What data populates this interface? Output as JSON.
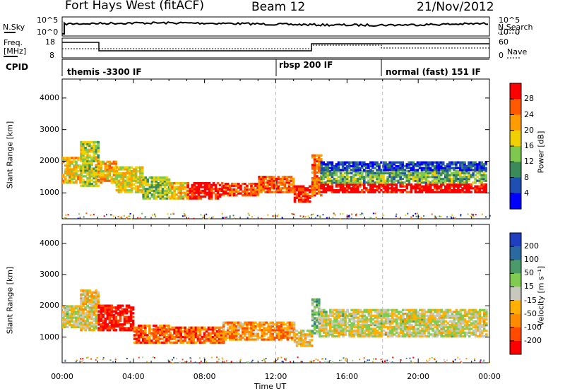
{
  "header": {
    "station": "Fort Hays West (fitACF)",
    "beam": "Beam 12",
    "date": "21/Nov/2012"
  },
  "summary": {
    "nsky_label": "N.Sky",
    "nsearch_label": "N.Search",
    "freq_label_line1": "Freq.",
    "freq_label_line2": "[MHz]",
    "nave_label": "Nave",
    "cpid_label": "CPID",
    "noise_ticks": [
      "10^5",
      "10^0"
    ],
    "freq_ticks": [
      "18",
      "8"
    ],
    "nave_ticks": [
      "60",
      "0"
    ],
    "modes": [
      {
        "label": "themis -3300 IF",
        "start_hour": 0
      },
      {
        "label": "rbsp 200 IF",
        "start_hour": 12
      },
      {
        "label": "normal (fast) 151 IF",
        "start_hour": 18
      }
    ]
  },
  "colors": {
    "power_scale": [
      "#0000ff",
      "#1f4fb0",
      "#3b8a5a",
      "#7fc850",
      "#f0d000",
      "#ff9c00",
      "#ff5a00",
      "#ff0000"
    ],
    "velocity_scale": [
      "#ff0000",
      "#ff4a00",
      "#ff8c00",
      "#ffb000",
      "#c8c8be",
      "#7fcc50",
      "#4a9a6a",
      "#2b6aa0",
      "#1f3fc0"
    ]
  },
  "chart_data": [
    {
      "type": "heatmap",
      "panel": "power",
      "ylabel": "Slant Range [km]",
      "xlabel": "Time UT",
      "ylim": [
        180,
        4600
      ],
      "xlim_hours": [
        0,
        24
      ],
      "x_ticks": [
        "00:00",
        "04:00",
        "08:00",
        "12:00",
        "16:00",
        "20:00",
        "00:00"
      ],
      "y_ticks": [
        1000,
        2000,
        3000,
        4000
      ],
      "colorbar": {
        "label": "Power [dB]",
        "ticks": [
          "4",
          "8",
          "12",
          "16",
          "20",
          "24",
          "28"
        ]
      },
      "bands": [
        {
          "t0": 0.0,
          "t1": 1.0,
          "r0": 1300,
          "r1": 2100,
          "level": 0.6
        },
        {
          "t0": 1.0,
          "t1": 2.0,
          "r0": 1200,
          "r1": 2600,
          "level": 0.5
        },
        {
          "t0": 2.0,
          "t1": 3.0,
          "r0": 1300,
          "r1": 2000,
          "level": 0.65
        },
        {
          "t0": 3.0,
          "t1": 4.5,
          "r0": 1000,
          "r1": 1800,
          "level": 0.55
        },
        {
          "t0": 4.5,
          "t1": 6.0,
          "r0": 800,
          "r1": 1500,
          "level": 0.45
        },
        {
          "t0": 6.0,
          "t1": 7.0,
          "r0": 800,
          "r1": 1300,
          "level": 0.6
        },
        {
          "t0": 7.0,
          "t1": 9.0,
          "r0": 800,
          "r1": 1300,
          "level": 0.95
        },
        {
          "t0": 9.0,
          "t1": 11.0,
          "r0": 900,
          "r1": 1300,
          "level": 0.85
        },
        {
          "t0": 11.0,
          "t1": 13.0,
          "r0": 1000,
          "r1": 1500,
          "level": 0.8
        },
        {
          "t0": 13.0,
          "t1": 14.0,
          "r0": 700,
          "r1": 1200,
          "level": 0.9
        },
        {
          "t0": 14.0,
          "t1": 14.5,
          "r0": 900,
          "r1": 2200,
          "level": 0.8
        },
        {
          "t0": 14.5,
          "t1": 23.8,
          "r0": 1000,
          "r1": 1300,
          "level": 1.0
        },
        {
          "t0": 14.5,
          "t1": 23.8,
          "r0": 1300,
          "r1": 1700,
          "level": 0.4
        },
        {
          "t0": 14.5,
          "t1": 23.8,
          "r0": 1700,
          "r1": 2000,
          "level": 0.15
        }
      ]
    },
    {
      "type": "heatmap",
      "panel": "velocity",
      "ylabel": "Slant Range [km]",
      "xlabel": "Time UT",
      "ylim": [
        180,
        4600
      ],
      "xlim_hours": [
        0,
        24
      ],
      "x_ticks": [
        "00:00",
        "04:00",
        "08:00",
        "12:00",
        "16:00",
        "20:00",
        "00:00"
      ],
      "y_ticks": [
        1000,
        2000,
        3000,
        4000
      ],
      "colorbar": {
        "label": "Velocity [m s⁻¹]",
        "ticks": [
          "200",
          "100",
          "50",
          "15",
          "-15",
          "-50",
          "-100",
          "-200"
        ]
      },
      "bands": [
        {
          "t0": 0.0,
          "t1": 1.0,
          "r0": 1300,
          "r1": 2000,
          "level": 0.5
        },
        {
          "t0": 1.0,
          "t1": 2.0,
          "r0": 1200,
          "r1": 2500,
          "level": 0.45
        },
        {
          "t0": 2.0,
          "t1": 4.0,
          "r0": 1200,
          "r1": 2000,
          "level": 0.05
        },
        {
          "t0": 4.0,
          "t1": 6.0,
          "r0": 800,
          "r1": 1400,
          "level": 0.2
        },
        {
          "t0": 6.0,
          "t1": 9.0,
          "r0": 800,
          "r1": 1300,
          "level": 0.2
        },
        {
          "t0": 9.0,
          "t1": 13.0,
          "r0": 900,
          "r1": 1500,
          "level": 0.3
        },
        {
          "t0": 13.0,
          "t1": 14.0,
          "r0": 700,
          "r1": 1200,
          "level": 0.45
        },
        {
          "t0": 14.0,
          "t1": 14.4,
          "r0": 1100,
          "r1": 2200,
          "level": 0.65
        },
        {
          "t0": 14.4,
          "t1": 23.8,
          "r0": 1000,
          "r1": 1900,
          "level": 0.5
        }
      ]
    }
  ]
}
